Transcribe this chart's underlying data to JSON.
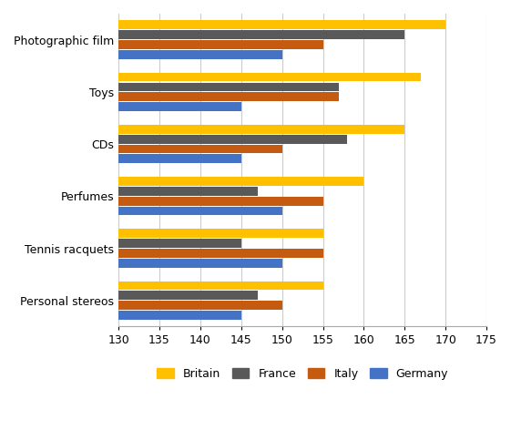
{
  "categories": [
    "Photographic film",
    "Toys",
    "CDs",
    "Perfumes",
    "Tennis racquets",
    "Personal stereos"
  ],
  "series": {
    "Britain": [
      170,
      167,
      165,
      160,
      155,
      155
    ],
    "France": [
      165,
      157,
      158,
      147,
      145,
      147
    ],
    "Italy": [
      155,
      157,
      150,
      155,
      155,
      150
    ],
    "Germany": [
      150,
      145,
      145,
      150,
      150,
      145
    ]
  },
  "colors": {
    "Britain": "#FFC000",
    "France": "#595959",
    "Italy": "#C55A11",
    "Germany": "#4472C4"
  },
  "xlim": [
    130,
    175
  ],
  "xticks": [
    130,
    135,
    140,
    145,
    150,
    155,
    160,
    165,
    170,
    175
  ],
  "legend_order": [
    "Britain",
    "France",
    "Italy",
    "Germany"
  ],
  "bar_height": 0.19,
  "background_color": "#FFFFFF",
  "grid_color": "#CCCCCC",
  "fontsize_ticks": 9,
  "fontsize_legend": 9
}
